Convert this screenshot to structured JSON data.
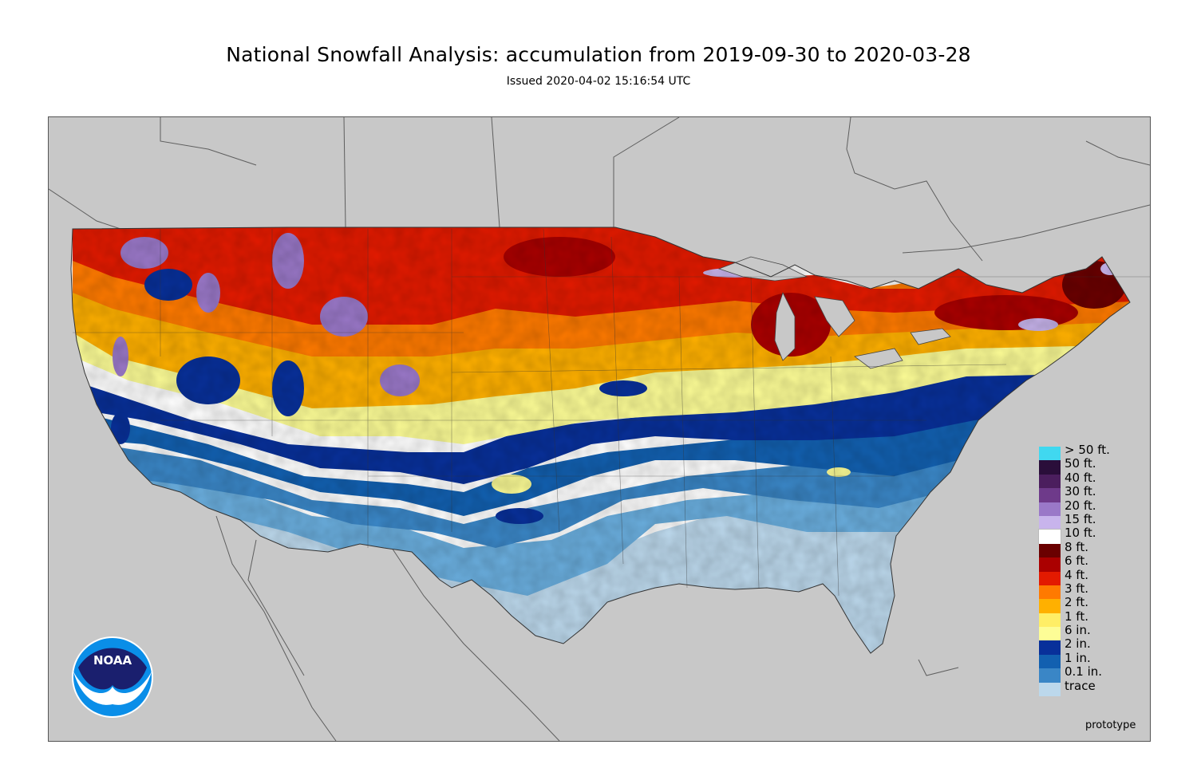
{
  "header": {
    "title": "National Snowfall Analysis: accumulation from 2019-09-30 to 2020-03-28",
    "subtitle": "Issued 2020-04-02 15:16:54 UTC"
  },
  "map": {
    "background_color": "#c8c8c8",
    "border_color": "#555555"
  },
  "legend": {
    "items": [
      {
        "label": "> 50 ft.",
        "color": "#40d8f0"
      },
      {
        "label": "50 ft.",
        "color": "#2a0e3a"
      },
      {
        "label": "40 ft.",
        "color": "#4b1e5e"
      },
      {
        "label": "30 ft.",
        "color": "#6e3a8a"
      },
      {
        "label": "20 ft.",
        "color": "#9a78c8"
      },
      {
        "label": "15 ft.",
        "color": "#c8b4ec"
      },
      {
        "label": "10 ft.",
        "color": "#ffffff"
      },
      {
        "label": "8 ft.",
        "color": "#6a0000"
      },
      {
        "label": "6 ft.",
        "color": "#aa0000"
      },
      {
        "label": "4 ft.",
        "color": "#e31a00"
      },
      {
        "label": "3 ft.",
        "color": "#ff7a00"
      },
      {
        "label": "2 ft.",
        "color": "#ffb000"
      },
      {
        "label": "1 ft.",
        "color": "#ffee66"
      },
      {
        "label": "6 in.",
        "color": "#fdfd96"
      },
      {
        "label": "2 in.",
        "color": "#08309a"
      },
      {
        "label": "1 in.",
        "color": "#1260b0"
      },
      {
        "label": "0.1 in.",
        "color": "#3a86c6"
      },
      {
        "label": "trace",
        "color": "#bcd8ec"
      }
    ]
  },
  "footer": {
    "note": "prototype"
  },
  "logo": {
    "text": "NOAA"
  }
}
